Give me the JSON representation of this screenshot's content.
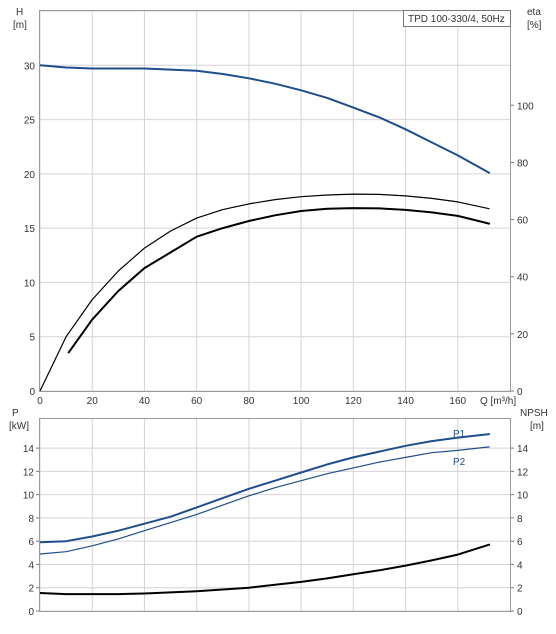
{
  "colors": {
    "blue": "#1f4e8c",
    "black": "#000000",
    "grid": "#d4d4d4",
    "frame": "#9a9a9a"
  },
  "chart_data": [
    {
      "id": "head_efficiency",
      "type": "line",
      "title": "TPD 100-330/4, 50Hz",
      "xlabel": "Q [m³/h]",
      "ylabel_left": [
        "H",
        "[m]"
      ],
      "ylabel_right": [
        "eta",
        "[%]"
      ],
      "xlim": [
        0,
        180
      ],
      "ylim_left": [
        0,
        35
      ],
      "ylim_right": [
        0,
        133
      ],
      "grid": true,
      "x_ticks": [
        "0",
        "20",
        "40",
        "60",
        "80",
        "100",
        "120",
        "140",
        "160"
      ],
      "y_left_ticks": [
        "0",
        "5",
        "10",
        "15",
        "20",
        "25",
        "30"
      ],
      "y_right_ticks": [
        "0",
        "20",
        "40",
        "60",
        "80",
        "100"
      ],
      "series": [
        {
          "axis": "left",
          "color": "#1f4e8c",
          "width": 2,
          "x": [
            0,
            10,
            20,
            30,
            40,
            50,
            60,
            70,
            80,
            90,
            100,
            110,
            120,
            130,
            140,
            150,
            160,
            172
          ],
          "y": [
            30.0,
            29.8,
            29.7,
            29.7,
            29.7,
            29.6,
            29.5,
            29.2,
            28.8,
            28.3,
            27.7,
            27.0,
            26.1,
            25.2,
            24.1,
            22.9,
            21.7,
            20.1
          ]
        },
        {
          "axis": "right",
          "color": "#000000",
          "width": 1.2,
          "x": [
            0,
            10,
            20,
            30,
            40,
            50,
            60,
            70,
            80,
            90,
            100,
            110,
            120,
            130,
            140,
            150,
            160,
            172
          ],
          "y": [
            0,
            19,
            32,
            42,
            50,
            56,
            60.5,
            63.5,
            65.5,
            67,
            68,
            68.6,
            68.9,
            68.8,
            68.3,
            67.4,
            66.2,
            63.8
          ]
        },
        {
          "axis": "right",
          "color": "#000000",
          "width": 2,
          "x": [
            11,
            20,
            30,
            40,
            50,
            60,
            70,
            80,
            90,
            100,
            110,
            120,
            130,
            140,
            150,
            160,
            172
          ],
          "y": [
            13.5,
            25,
            35,
            43,
            48.5,
            54,
            57,
            59.5,
            61.5,
            63,
            63.8,
            64,
            63.9,
            63.4,
            62.5,
            61.3,
            58.6
          ]
        }
      ]
    },
    {
      "id": "power_npsh",
      "type": "line",
      "ylabel_left": [
        "P",
        "[kW]"
      ],
      "ylabel_right": [
        "NPSH",
        "[m]"
      ],
      "xlim": [
        0,
        180
      ],
      "ylim_left": [
        0,
        16.5
      ],
      "ylim_right": [
        0,
        16.5
      ],
      "grid": true,
      "y_left_ticks": [
        "0",
        "2",
        "4",
        "6",
        "8",
        "10",
        "12",
        "14"
      ],
      "y_right_ticks": [
        "0",
        "2",
        "4",
        "6",
        "8",
        "10",
        "12",
        "14"
      ],
      "series": [
        {
          "name": "P1",
          "axis": "left",
          "color": "#1f4e8c",
          "width": 2,
          "x": [
            0,
            10,
            20,
            30,
            40,
            50,
            60,
            70,
            80,
            90,
            100,
            110,
            120,
            130,
            140,
            150,
            160,
            172
          ],
          "y": [
            5.9,
            6.0,
            6.4,
            6.9,
            7.5,
            8.1,
            8.9,
            9.7,
            10.5,
            11.2,
            11.9,
            12.6,
            13.2,
            13.7,
            14.2,
            14.6,
            14.9,
            15.2
          ]
        },
        {
          "name": "P2",
          "axis": "left",
          "color": "#1f4e8c",
          "width": 1.2,
          "x": [
            0,
            10,
            20,
            30,
            40,
            50,
            60,
            70,
            80,
            90,
            100,
            110,
            120,
            130,
            140,
            150,
            160,
            172
          ],
          "y": [
            4.9,
            5.1,
            5.6,
            6.2,
            6.9,
            7.6,
            8.3,
            9.1,
            9.9,
            10.6,
            11.2,
            11.8,
            12.3,
            12.8,
            13.2,
            13.6,
            13.8,
            14.1
          ]
        },
        {
          "axis": "right",
          "color": "#000000",
          "width": 2,
          "x": [
            0,
            10,
            20,
            30,
            40,
            50,
            60,
            70,
            80,
            90,
            100,
            110,
            120,
            130,
            140,
            150,
            160,
            172
          ],
          "y": [
            1.55,
            1.45,
            1.45,
            1.45,
            1.5,
            1.6,
            1.7,
            1.85,
            2.0,
            2.25,
            2.5,
            2.8,
            3.15,
            3.5,
            3.9,
            4.35,
            4.85,
            5.7
          ]
        }
      ]
    }
  ]
}
